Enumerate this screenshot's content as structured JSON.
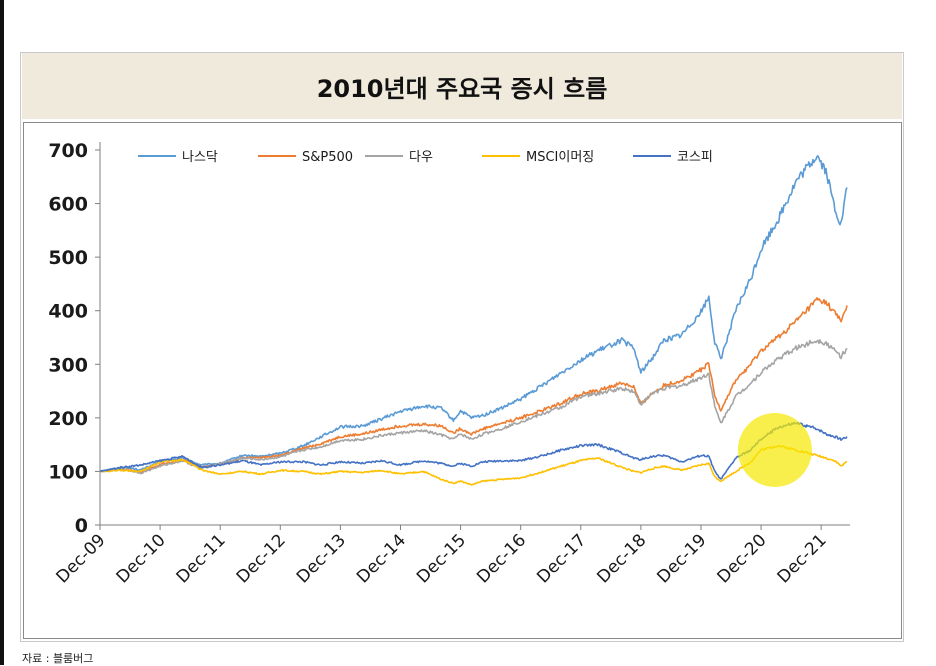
{
  "page": {
    "title": "2010년대 주요국 증시 흐름",
    "source": "자료 : 블룸버그"
  },
  "chart_data": {
    "type": "line",
    "title": "2010년대 주요국 증시 흐름",
    "xlabel": "",
    "ylabel": "",
    "ylim": [
      0,
      700
    ],
    "yticks": [
      0,
      100,
      200,
      300,
      400,
      500,
      600,
      700
    ],
    "xticks": [
      "Dec-09",
      "Dec-10",
      "Dec-11",
      "Dec-12",
      "Dec-13",
      "Dec-14",
      "Dec-15",
      "Dec-16",
      "Dec-17",
      "Dec-18",
      "Dec-19",
      "Dec-20",
      "Dec-21"
    ],
    "legend_position": "top",
    "grid": false,
    "highlight": {
      "label": "yellow-circle",
      "x": 2021.15,
      "y": 140,
      "color": "#f5e800"
    },
    "series": [
      {
        "name": "나스닥",
        "color": "#5b9bd5",
        "points": [
          [
            2009.92,
            100
          ],
          [
            2010.3,
            108
          ],
          [
            2010.6,
            103
          ],
          [
            2010.92,
            118
          ],
          [
            2011.3,
            125
          ],
          [
            2011.6,
            112
          ],
          [
            2011.92,
            115
          ],
          [
            2012.3,
            130
          ],
          [
            2012.6,
            128
          ],
          [
            2012.92,
            134
          ],
          [
            2013.3,
            148
          ],
          [
            2013.6,
            165
          ],
          [
            2013.92,
            183
          ],
          [
            2014.3,
            185
          ],
          [
            2014.6,
            198
          ],
          [
            2014.92,
            212
          ],
          [
            2015.3,
            222
          ],
          [
            2015.6,
            218
          ],
          [
            2015.8,
            195
          ],
          [
            2015.92,
            213
          ],
          [
            2016.1,
            200
          ],
          [
            2016.3,
            205
          ],
          [
            2016.6,
            218
          ],
          [
            2016.92,
            235
          ],
          [
            2017.3,
            262
          ],
          [
            2017.6,
            285
          ],
          [
            2017.92,
            308
          ],
          [
            2018.2,
            325
          ],
          [
            2018.6,
            345
          ],
          [
            2018.8,
            330
          ],
          [
            2018.92,
            285
          ],
          [
            2019.1,
            310
          ],
          [
            2019.3,
            345
          ],
          [
            2019.6,
            355
          ],
          [
            2019.92,
            398
          ],
          [
            2020.05,
            425
          ],
          [
            2020.15,
            340
          ],
          [
            2020.25,
            310
          ],
          [
            2020.5,
            400
          ],
          [
            2020.75,
            460
          ],
          [
            2020.92,
            515
          ],
          [
            2021.2,
            570
          ],
          [
            2021.5,
            640
          ],
          [
            2021.85,
            690
          ],
          [
            2022.0,
            660
          ],
          [
            2022.15,
            590
          ],
          [
            2022.25,
            560
          ],
          [
            2022.35,
            630
          ]
        ]
      },
      {
        "name": "S&P500",
        "color": "#ed7d31",
        "points": [
          [
            2009.92,
            100
          ],
          [
            2010.3,
            105
          ],
          [
            2010.6,
            98
          ],
          [
            2010.92,
            113
          ],
          [
            2011.3,
            122
          ],
          [
            2011.6,
            108
          ],
          [
            2011.92,
            113
          ],
          [
            2012.3,
            125
          ],
          [
            2012.6,
            126
          ],
          [
            2012.92,
            130
          ],
          [
            2013.3,
            143
          ],
          [
            2013.6,
            152
          ],
          [
            2013.92,
            165
          ],
          [
            2014.3,
            170
          ],
          [
            2014.6,
            178
          ],
          [
            2014.92,
            185
          ],
          [
            2015.3,
            188
          ],
          [
            2015.6,
            185
          ],
          [
            2015.8,
            172
          ],
          [
            2015.92,
            180
          ],
          [
            2016.1,
            170
          ],
          [
            2016.3,
            180
          ],
          [
            2016.6,
            190
          ],
          [
            2016.92,
            200
          ],
          [
            2017.3,
            215
          ],
          [
            2017.6,
            228
          ],
          [
            2017.92,
            245
          ],
          [
            2018.2,
            250
          ],
          [
            2018.6,
            265
          ],
          [
            2018.8,
            258
          ],
          [
            2018.92,
            225
          ],
          [
            2019.1,
            245
          ],
          [
            2019.3,
            260
          ],
          [
            2019.6,
            270
          ],
          [
            2019.92,
            290
          ],
          [
            2020.05,
            300
          ],
          [
            2020.15,
            240
          ],
          [
            2020.25,
            215
          ],
          [
            2020.5,
            270
          ],
          [
            2020.75,
            300
          ],
          [
            2020.92,
            325
          ],
          [
            2021.2,
            350
          ],
          [
            2021.5,
            380
          ],
          [
            2021.85,
            420
          ],
          [
            2022.0,
            415
          ],
          [
            2022.15,
            395
          ],
          [
            2022.25,
            380
          ],
          [
            2022.35,
            410
          ]
        ]
      },
      {
        "name": "다우",
        "color": "#a5a5a5",
        "points": [
          [
            2009.92,
            100
          ],
          [
            2010.3,
            104
          ],
          [
            2010.6,
            97
          ],
          [
            2010.92,
            110
          ],
          [
            2011.3,
            120
          ],
          [
            2011.6,
            105
          ],
          [
            2011.92,
            115
          ],
          [
            2012.3,
            125
          ],
          [
            2012.6,
            122
          ],
          [
            2012.92,
            127
          ],
          [
            2013.3,
            140
          ],
          [
            2013.6,
            146
          ],
          [
            2013.92,
            158
          ],
          [
            2014.3,
            160
          ],
          [
            2014.6,
            167
          ],
          [
            2014.92,
            172
          ],
          [
            2015.3,
            176
          ],
          [
            2015.6,
            168
          ],
          [
            2015.8,
            160
          ],
          [
            2015.92,
            170
          ],
          [
            2016.1,
            160
          ],
          [
            2016.3,
            170
          ],
          [
            2016.6,
            180
          ],
          [
            2016.92,
            193
          ],
          [
            2017.3,
            208
          ],
          [
            2017.6,
            220
          ],
          [
            2017.92,
            240
          ],
          [
            2018.2,
            245
          ],
          [
            2018.6,
            255
          ],
          [
            2018.8,
            250
          ],
          [
            2018.92,
            225
          ],
          [
            2019.1,
            245
          ],
          [
            2019.3,
            255
          ],
          [
            2019.6,
            260
          ],
          [
            2019.92,
            275
          ],
          [
            2020.05,
            282
          ],
          [
            2020.15,
            220
          ],
          [
            2020.25,
            190
          ],
          [
            2020.5,
            240
          ],
          [
            2020.75,
            265
          ],
          [
            2020.92,
            285
          ],
          [
            2021.2,
            310
          ],
          [
            2021.5,
            330
          ],
          [
            2021.85,
            345
          ],
          [
            2022.0,
            340
          ],
          [
            2022.15,
            325
          ],
          [
            2022.25,
            315
          ],
          [
            2022.35,
            330
          ]
        ]
      },
      {
        "name": "MSCI이머징",
        "color": "#ffc000",
        "points": [
          [
            2009.92,
            100
          ],
          [
            2010.3,
            102
          ],
          [
            2010.6,
            100
          ],
          [
            2010.92,
            118
          ],
          [
            2011.3,
            122
          ],
          [
            2011.6,
            103
          ],
          [
            2011.92,
            95
          ],
          [
            2012.3,
            100
          ],
          [
            2012.6,
            95
          ],
          [
            2012.92,
            102
          ],
          [
            2013.3,
            100
          ],
          [
            2013.6,
            95
          ],
          [
            2013.92,
            100
          ],
          [
            2014.3,
            98
          ],
          [
            2014.6,
            102
          ],
          [
            2014.92,
            95
          ],
          [
            2015.3,
            100
          ],
          [
            2015.6,
            85
          ],
          [
            2015.8,
            78
          ],
          [
            2015.92,
            82
          ],
          [
            2016.1,
            75
          ],
          [
            2016.3,
            82
          ],
          [
            2016.6,
            85
          ],
          [
            2016.92,
            88
          ],
          [
            2017.3,
            100
          ],
          [
            2017.6,
            110
          ],
          [
            2017.92,
            120
          ],
          [
            2018.2,
            125
          ],
          [
            2018.6,
            108
          ],
          [
            2018.8,
            100
          ],
          [
            2018.92,
            98
          ],
          [
            2019.1,
            105
          ],
          [
            2019.3,
            110
          ],
          [
            2019.6,
            102
          ],
          [
            2019.92,
            112
          ],
          [
            2020.05,
            115
          ],
          [
            2020.15,
            90
          ],
          [
            2020.25,
            82
          ],
          [
            2020.5,
            100
          ],
          [
            2020.75,
            118
          ],
          [
            2020.92,
            140
          ],
          [
            2021.2,
            148
          ],
          [
            2021.5,
            140
          ],
          [
            2021.85,
            130
          ],
          [
            2022.0,
            125
          ],
          [
            2022.15,
            120
          ],
          [
            2022.25,
            110
          ],
          [
            2022.35,
            118
          ]
        ]
      },
      {
        "name": "코스피",
        "color": "#4472c4",
        "points": [
          [
            2009.92,
            100
          ],
          [
            2010.3,
            108
          ],
          [
            2010.6,
            112
          ],
          [
            2010.92,
            120
          ],
          [
            2011.3,
            128
          ],
          [
            2011.6,
            108
          ],
          [
            2011.92,
            112
          ],
          [
            2012.3,
            120
          ],
          [
            2012.6,
            112
          ],
          [
            2012.92,
            118
          ],
          [
            2013.3,
            118
          ],
          [
            2013.6,
            112
          ],
          [
            2013.92,
            118
          ],
          [
            2014.3,
            115
          ],
          [
            2014.6,
            120
          ],
          [
            2014.92,
            112
          ],
          [
            2015.3,
            120
          ],
          [
            2015.6,
            115
          ],
          [
            2015.8,
            110
          ],
          [
            2015.92,
            115
          ],
          [
            2016.1,
            110
          ],
          [
            2016.3,
            118
          ],
          [
            2016.6,
            120
          ],
          [
            2016.92,
            120
          ],
          [
            2017.3,
            130
          ],
          [
            2017.6,
            140
          ],
          [
            2017.92,
            148
          ],
          [
            2018.2,
            150
          ],
          [
            2018.6,
            135
          ],
          [
            2018.8,
            125
          ],
          [
            2018.92,
            122
          ],
          [
            2019.1,
            128
          ],
          [
            2019.3,
            130
          ],
          [
            2019.6,
            118
          ],
          [
            2019.92,
            130
          ],
          [
            2020.05,
            128
          ],
          [
            2020.15,
            100
          ],
          [
            2020.25,
            85
          ],
          [
            2020.5,
            125
          ],
          [
            2020.75,
            140
          ],
          [
            2020.92,
            160
          ],
          [
            2021.2,
            182
          ],
          [
            2021.5,
            190
          ],
          [
            2021.85,
            180
          ],
          [
            2022.0,
            170
          ],
          [
            2022.15,
            165
          ],
          [
            2022.25,
            160
          ],
          [
            2022.35,
            165
          ]
        ]
      }
    ]
  }
}
